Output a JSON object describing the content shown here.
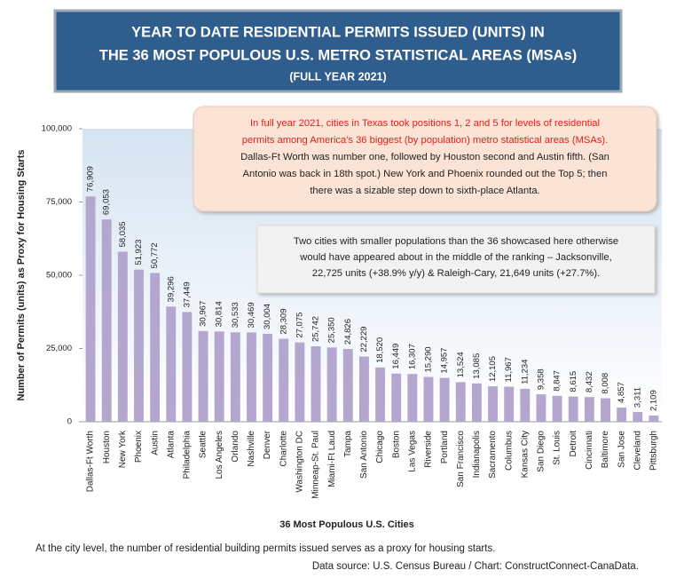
{
  "chart_data": {
    "type": "bar",
    "title": [
      "YEAR TO DATE RESIDENTIAL PERMITS ISSUED (UNITS) IN",
      "THE 36 MOST POPULOUS U.S. METRO STATISTICAL AREAS (MSAs)"
    ],
    "subtitle": "(FULL YEAR 2021)",
    "categories": [
      "Dallas-Ft Worth",
      "Houston",
      "New York",
      "Phoenix",
      "Austin",
      "Atlanta",
      "Philadelphia",
      "Seattle",
      "Los Angeles",
      "Orlando",
      "Nashville",
      "Denver",
      "Charlotte",
      "Washington DC",
      "Minneap-St. Paul",
      "Miami-Ft Laud",
      "Tampa",
      "San Antonio",
      "Chicago",
      "Boston",
      "Las Vegas",
      "Riverside",
      "Portland",
      "San Francisco",
      "Indianapolis",
      "Sacramento",
      "Columbus",
      "Kansas City",
      "San Diego",
      "St. Louis",
      "Detroit",
      "Cincinnati",
      "Baltimore",
      "San Jose",
      "Cleveland",
      "Pittsburgh"
    ],
    "values": [
      76909,
      69053,
      58035,
      51923,
      50772,
      39296,
      37449,
      30967,
      30814,
      30533,
      30469,
      30004,
      28309,
      27075,
      25742,
      25350,
      24826,
      22229,
      18520,
      16449,
      16307,
      15290,
      14957,
      13524,
      13085,
      12105,
      11967,
      11234,
      9358,
      8847,
      8615,
      8432,
      8008,
      4857,
      3311,
      2109
    ],
    "value_labels": [
      "76,909",
      "69,053",
      "58,035",
      "51,923",
      "50,772",
      "39,296",
      "37,449",
      "30,967",
      "30,814",
      "30,533",
      "30,469",
      "30,004",
      "28,309",
      "27,075",
      "25,742",
      "25,350",
      "24,826",
      "22,229",
      "18,520",
      "16,449",
      "16,307",
      "15,290",
      "14,957",
      "13,524",
      "13,085",
      "12,105",
      "11,967",
      "11,234",
      "9,358",
      "8,847",
      "8,615",
      "8,432",
      "8,008",
      "4,857",
      "3,311",
      "2,109"
    ],
    "color": "#b4a7cf",
    "ylim": [
      0,
      100000
    ],
    "yticks": [
      0,
      {
        "value": 25000,
        "label": "25,000"
      },
      {
        "value": 50000,
        "label": "50,000"
      },
      {
        "value": 75000,
        "label": "75,000"
      },
      {
        "value": 100000,
        "label": "100,000"
      }
    ],
    "grid": false,
    "x_label": "36 Most Populous U.S. Cities",
    "y_label": "Number of Permits (units) as Proxy for Housing Starts",
    "annotations": [
      {
        "highlight_lines": [
          "In full year 2021, cities in Texas took positions 1, 2 and 5 for levels of residential",
          "permits among America's 36 biggest (by population) metro statistical areas (MSAs)."
        ],
        "lines": [
          "Dallas-Ft Worth was number one, followed by Houston second and Austin fifth. (San",
          "Antonio was back in 18th spot.) New York and Phoenix rounded out the Top 5; then",
          "there was a sizable step down to sixth-place Atlanta."
        ]
      },
      {
        "lines": [
          "Two cities with smaller populations than the 36 showcased here otherwise",
          "would have appeared about in the middle of the ranking – Jacksonville,",
          "22,725 units (+38.9% y/y) & Raleigh-Cary, 21,649 units (+27.7%)."
        ]
      }
    ],
    "footnote": "At the city level, the number of residential building permits issued serves as a proxy for housing starts.",
    "source": "Data source: U.S. Census Bureau / Chart: ConstructConnect-CanaData."
  }
}
